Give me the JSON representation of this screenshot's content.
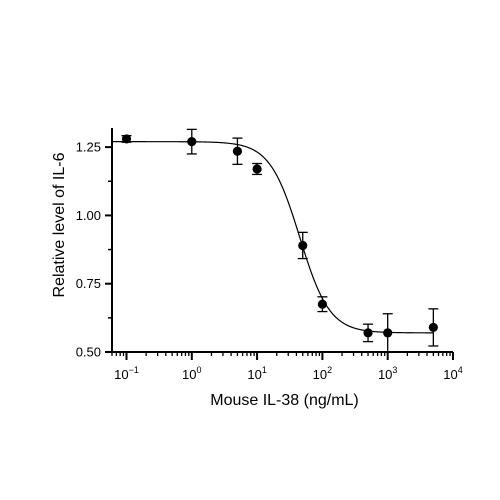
{
  "chart_data": {
    "type": "scatter",
    "xlabel": "Mouse IL-38 (ng/mL)",
    "ylabel": "Relative level of IL-6",
    "x_scale": "log",
    "xlim": [
      0.06,
      10000
    ],
    "ylim": [
      0.5,
      1.32
    ],
    "x_ticks": [
      {
        "value": 0.1,
        "base": "10",
        "exp": "−1"
      },
      {
        "value": 1,
        "base": "10",
        "exp": "0"
      },
      {
        "value": 10,
        "base": "10",
        "exp": "1"
      },
      {
        "value": 100,
        "base": "10",
        "exp": "2"
      },
      {
        "value": 1000,
        "base": "10",
        "exp": "3"
      },
      {
        "value": 10000,
        "base": "10",
        "exp": "4"
      }
    ],
    "y_ticks": [
      {
        "value": 0.5,
        "label": "0.50"
      },
      {
        "value": 0.75,
        "label": "0.75"
      },
      {
        "value": 1.0,
        "label": "1.00"
      },
      {
        "value": 1.25,
        "label": "1.25"
      }
    ],
    "grid": false,
    "series": [
      {
        "marker": "filled-circle",
        "color": "#000000",
        "points": [
          {
            "x": 0.1,
            "y": 1.28,
            "err": 0.012
          },
          {
            "x": 1,
            "y": 1.27,
            "err": 0.045
          },
          {
            "x": 5,
            "y": 1.235,
            "err": 0.048
          },
          {
            "x": 10,
            "y": 1.17,
            "err": 0.02
          },
          {
            "x": 50,
            "y": 0.89,
            "err": 0.048
          },
          {
            "x": 100,
            "y": 0.675,
            "err": 0.027
          },
          {
            "x": 500,
            "y": 0.57,
            "err": 0.032
          },
          {
            "x": 1000,
            "y": 0.57,
            "err": 0.07
          },
          {
            "x": 5000,
            "y": 0.59,
            "err": 0.068
          }
        ]
      }
    ],
    "fit_curve": {
      "model": "four-parameter logistic",
      "top": 1.27,
      "bottom": 0.57,
      "ec50": 45,
      "hill": 1.9,
      "x_range": [
        0.06,
        5000
      ],
      "color": "#000000"
    }
  }
}
